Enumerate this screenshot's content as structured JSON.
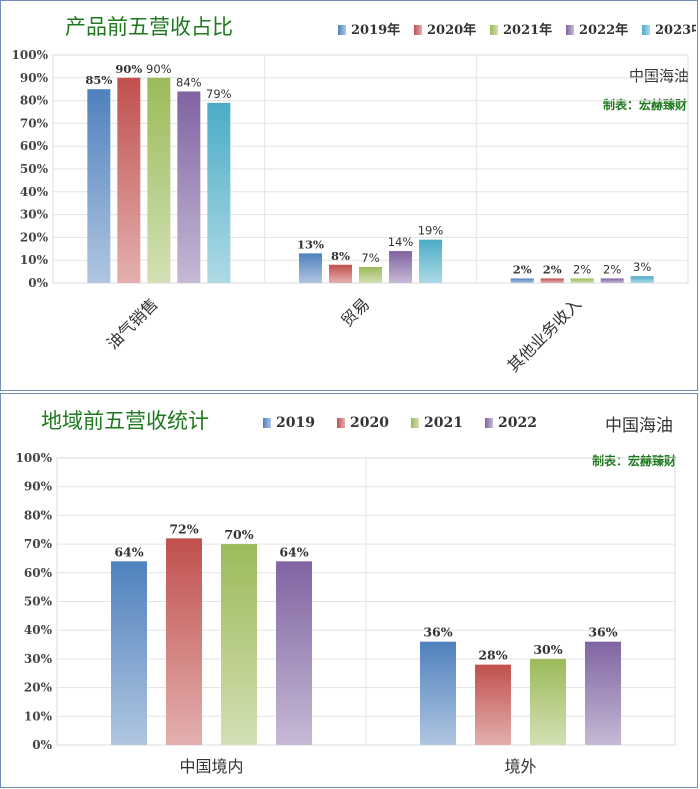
{
  "chart_data": [
    {
      "type": "bar",
      "title": "产品前五营收占比",
      "company": "中国海油",
      "credit": "制表：宏赫臻财",
      "categories": [
        "油气销售",
        "贸易",
        "其他业务收入"
      ],
      "series": [
        {
          "name": "2019年",
          "values": [
            85,
            13,
            2
          ],
          "labels": [
            "85%",
            "13%",
            "2%"
          ],
          "color": "#4f81bd"
        },
        {
          "name": "2020年",
          "values": [
            90,
            8,
            2
          ],
          "labels": [
            "90%",
            "8%",
            "2%"
          ],
          "color": "#c0504d"
        },
        {
          "name": "2021年",
          "values": [
            90,
            7,
            2
          ],
          "labels": [
            "90%",
            "7%",
            "2%"
          ],
          "color": "#9bbb59"
        },
        {
          "name": "2022年",
          "values": [
            84,
            14,
            2
          ],
          "labels": [
            "84%",
            "14%",
            "2%"
          ],
          "color": "#8064a2"
        },
        {
          "name": "2023中",
          "values": [
            79,
            19,
            3
          ],
          "labels": [
            "79%",
            "19%",
            "3%"
          ],
          "color": "#4bacc6"
        }
      ],
      "yticks": [
        "0%",
        "10%",
        "20%",
        "30%",
        "40%",
        "50%",
        "60%",
        "70%",
        "80%",
        "90%",
        "100%"
      ],
      "ylim": [
        0,
        100
      ],
      "grid": true,
      "legend": "top-right"
    },
    {
      "type": "bar",
      "title": "地域前五营收统计",
      "company": "中国海油",
      "credit": "制表：宏赫臻财",
      "categories": [
        "中国境内",
        "境外"
      ],
      "series": [
        {
          "name": "2019",
          "values": [
            64,
            36
          ],
          "labels": [
            "64%",
            "36%"
          ],
          "color": "#4f81bd"
        },
        {
          "name": "2020",
          "values": [
            72,
            28
          ],
          "labels": [
            "72%",
            "28%"
          ],
          "color": "#c0504d"
        },
        {
          "name": "2021",
          "values": [
            70,
            30
          ],
          "labels": [
            "70%",
            "30%"
          ],
          "color": "#9bbb59"
        },
        {
          "name": "2022",
          "values": [
            64,
            36
          ],
          "labels": [
            "64%",
            "36%"
          ],
          "color": "#8064a2"
        }
      ],
      "yticks": [
        "0%",
        "10%",
        "20%",
        "30%",
        "40%",
        "50%",
        "60%",
        "70%",
        "80%",
        "90%",
        "100%"
      ],
      "ylim": [
        0,
        100
      ],
      "grid": true,
      "legend": "top"
    }
  ]
}
